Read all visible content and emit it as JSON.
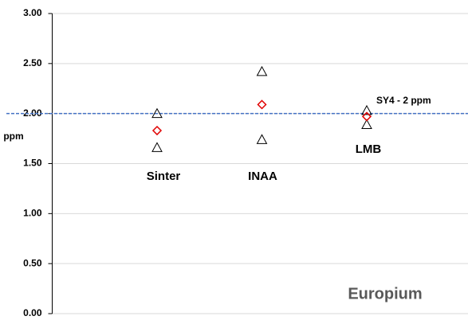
{
  "chart_data": {
    "type": "scatter",
    "categories": [
      "Sinter",
      "INAA",
      "LMB"
    ],
    "ylabel": "ppm",
    "annotation": "Europium",
    "series": [
      {
        "marker": "triangle",
        "color": "#000000",
        "values": [
          2.0,
          2.42,
          2.03
        ]
      },
      {
        "marker": "triangle",
        "color": "#000000",
        "values": [
          1.66,
          1.74,
          1.89
        ]
      },
      {
        "marker": "diamond",
        "color": "#e00000",
        "values": [
          1.83,
          2.09,
          1.97
        ]
      }
    ],
    "reference_line": {
      "value": 2,
      "label": "SY4 - 2 ppm",
      "color": "#4472c4"
    },
    "ylim": [
      0,
      3
    ],
    "yticks": [
      {
        "value": 0,
        "label": "0.00"
      },
      {
        "value": 0.5,
        "label": "0.50"
      },
      {
        "value": 1,
        "label": "1.00"
      },
      {
        "value": 1.5,
        "label": "1.50"
      },
      {
        "value": 2,
        "label": "2.00"
      },
      {
        "value": 2.5,
        "label": "2.50"
      },
      {
        "value": 3,
        "label": "3.00"
      }
    ],
    "grid": true
  }
}
